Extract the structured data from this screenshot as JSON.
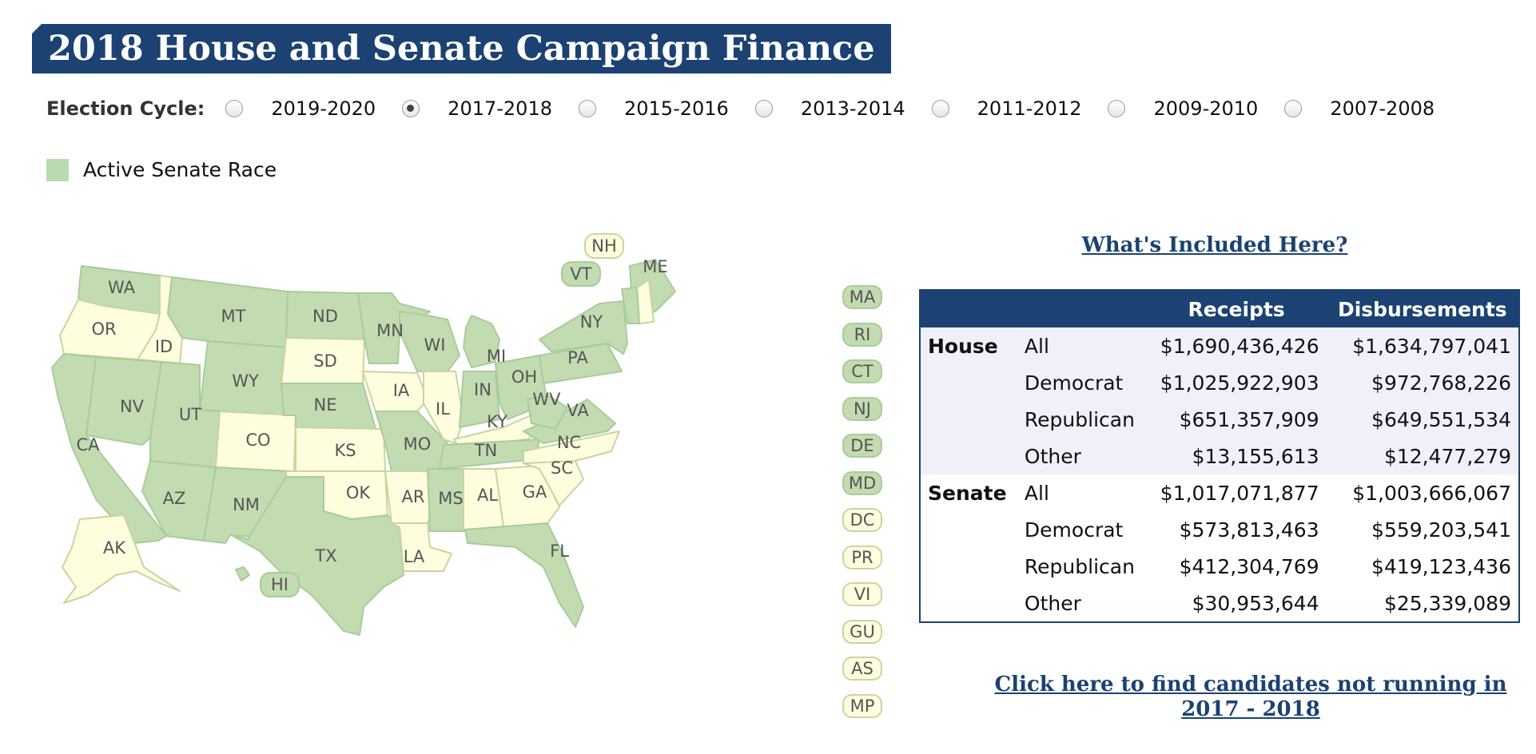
{
  "page": {
    "title": "2018 House and Senate Campaign Finance"
  },
  "cycle": {
    "label": "Election Cycle:",
    "options": [
      {
        "label": "2019-2020",
        "checked": false
      },
      {
        "label": "2017-2018",
        "checked": true
      },
      {
        "label": "2015-2016",
        "checked": false
      },
      {
        "label": "2013-2014",
        "checked": false
      },
      {
        "label": "2011-2012",
        "checked": false
      },
      {
        "label": "2009-2010",
        "checked": false
      },
      {
        "label": "2007-2008",
        "checked": false
      }
    ]
  },
  "legend": {
    "label": "Active Senate Race",
    "color": "#b9dbb0"
  },
  "colors": {
    "active": "#c3dbb1",
    "inactive": "#fefede",
    "navy": "#1b4272"
  },
  "map": {
    "states": [
      {
        "abbr": "WA",
        "active": true
      },
      {
        "abbr": "OR",
        "active": false
      },
      {
        "abbr": "CA",
        "active": true
      },
      {
        "abbr": "ID",
        "active": false
      },
      {
        "abbr": "NV",
        "active": true
      },
      {
        "abbr": "MT",
        "active": true
      },
      {
        "abbr": "WY",
        "active": true
      },
      {
        "abbr": "UT",
        "active": true
      },
      {
        "abbr": "AZ",
        "active": true
      },
      {
        "abbr": "CO",
        "active": false
      },
      {
        "abbr": "NM",
        "active": true
      },
      {
        "abbr": "ND",
        "active": true
      },
      {
        "abbr": "SD",
        "active": false
      },
      {
        "abbr": "NE",
        "active": true
      },
      {
        "abbr": "KS",
        "active": false
      },
      {
        "abbr": "OK",
        "active": false
      },
      {
        "abbr": "TX",
        "active": true
      },
      {
        "abbr": "MN",
        "active": true
      },
      {
        "abbr": "IA",
        "active": false
      },
      {
        "abbr": "MO",
        "active": true
      },
      {
        "abbr": "AR",
        "active": false
      },
      {
        "abbr": "LA",
        "active": false
      },
      {
        "abbr": "WI",
        "active": true
      },
      {
        "abbr": "IL",
        "active": false
      },
      {
        "abbr": "MI",
        "active": true
      },
      {
        "abbr": "IN",
        "active": true
      },
      {
        "abbr": "OH",
        "active": true
      },
      {
        "abbr": "KY",
        "active": false
      },
      {
        "abbr": "TN",
        "active": true
      },
      {
        "abbr": "MS",
        "active": true
      },
      {
        "abbr": "AL",
        "active": false
      },
      {
        "abbr": "GA",
        "active": false
      },
      {
        "abbr": "FL",
        "active": true
      },
      {
        "abbr": "SC",
        "active": false
      },
      {
        "abbr": "NC",
        "active": false
      },
      {
        "abbr": "VA",
        "active": true
      },
      {
        "abbr": "WV",
        "active": true
      },
      {
        "abbr": "PA",
        "active": true
      },
      {
        "abbr": "NY",
        "active": true
      },
      {
        "abbr": "ME",
        "active": true
      },
      {
        "abbr": "AK",
        "active": false
      },
      {
        "abbr": "HI",
        "active": true
      },
      {
        "abbr": "NH",
        "active": false
      },
      {
        "abbr": "VT",
        "active": true
      }
    ],
    "side_badges": [
      {
        "abbr": "MA",
        "active": true
      },
      {
        "abbr": "RI",
        "active": true
      },
      {
        "abbr": "CT",
        "active": true
      },
      {
        "abbr": "NJ",
        "active": true
      },
      {
        "abbr": "DE",
        "active": true
      },
      {
        "abbr": "MD",
        "active": true
      },
      {
        "abbr": "DC",
        "active": false
      },
      {
        "abbr": "PR",
        "active": false
      },
      {
        "abbr": "VI",
        "active": false
      },
      {
        "abbr": "GU",
        "active": false
      },
      {
        "abbr": "AS",
        "active": false
      },
      {
        "abbr": "MP",
        "active": false
      }
    ]
  },
  "links": {
    "included": "What's Included Here?",
    "not_running": "Click here to find candidates not running in 2017 - 2018"
  },
  "table": {
    "headers": [
      "",
      "",
      "Receipts",
      "Disbursements"
    ],
    "rows": [
      {
        "chamber": "House",
        "party": "All",
        "receipts": "$1,690,436,426",
        "disbursements": "$1,634,797,041"
      },
      {
        "chamber": "",
        "party": "Democrat",
        "receipts": "$1,025,922,903",
        "disbursements": "$972,768,226"
      },
      {
        "chamber": "",
        "party": "Republican",
        "receipts": "$651,357,909",
        "disbursements": "$649,551,534"
      },
      {
        "chamber": "",
        "party": "Other",
        "receipts": "$13,155,613",
        "disbursements": "$12,477,279"
      },
      {
        "chamber": "Senate",
        "party": "All",
        "receipts": "$1,017,071,877",
        "disbursements": "$1,003,666,067"
      },
      {
        "chamber": "",
        "party": "Democrat",
        "receipts": "$573,813,463",
        "disbursements": "$559,203,541"
      },
      {
        "chamber": "",
        "party": "Republican",
        "receipts": "$412,304,769",
        "disbursements": "$419,123,436"
      },
      {
        "chamber": "",
        "party": "Other",
        "receipts": "$30,953,644",
        "disbursements": "$25,339,089"
      }
    ]
  }
}
